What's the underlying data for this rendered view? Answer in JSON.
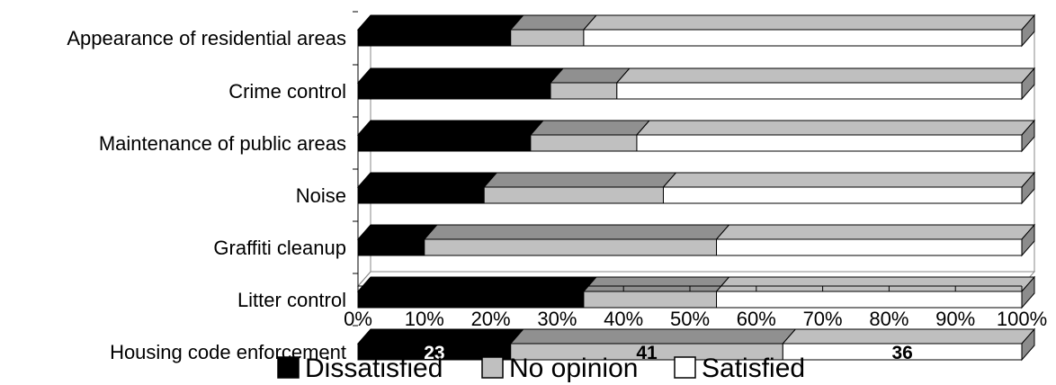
{
  "chart_data": {
    "type": "bar",
    "orientation": "horizontal",
    "stacked": "percent",
    "style": "3d",
    "categories": [
      "Appearance of residential areas",
      "Crime control",
      "Maintenance of public areas",
      "Noise",
      "Graffiti cleanup",
      "Litter control",
      "Housing code enforcement"
    ],
    "series": [
      {
        "name": "Dissatisfied",
        "color": "#000000",
        "values": [
          23,
          29,
          26,
          19,
          10,
          34,
          23
        ]
      },
      {
        "name": "No opinion",
        "color": "#c0c0c0",
        "values": [
          11,
          10,
          16,
          27,
          44,
          20,
          41
        ]
      },
      {
        "name": "Satisfied",
        "color": "#ffffff",
        "values": [
          66,
          61,
          58,
          54,
          46,
          46,
          36
        ]
      }
    ],
    "data_labels": [
      {
        "category_index": 6,
        "series_index": 0,
        "text": "23",
        "color": "#ffffff"
      },
      {
        "category_index": 6,
        "series_index": 1,
        "text": "41",
        "color": "#000000"
      },
      {
        "category_index": 6,
        "series_index": 2,
        "text": "36",
        "color": "#000000"
      }
    ],
    "xlim": [
      0,
      100
    ],
    "x_ticks": [
      "0%",
      "10%",
      "20%",
      "30%",
      "40%",
      "50%",
      "60%",
      "70%",
      "80%",
      "90%",
      "100%"
    ],
    "grid": false,
    "legend_position": "bottom"
  }
}
